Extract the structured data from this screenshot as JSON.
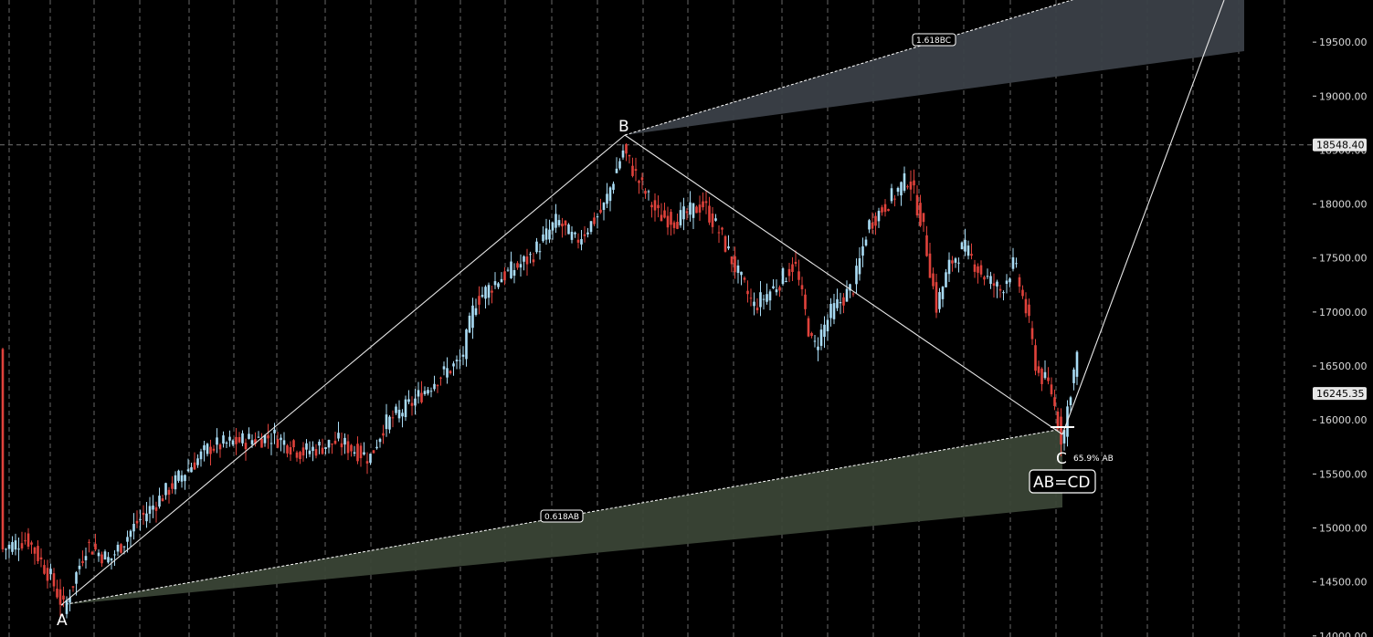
{
  "colors": {
    "background": "#000000",
    "grid": "#8a8a8a",
    "up_candle": "#a9dcf5",
    "down_candle": "#e0423b",
    "pattern_line": "#e8e8e8",
    "upper_zone_fill": "#3b4048",
    "lower_zone_fill": "#3a4436",
    "axis_text": "#d8d8d8",
    "price_tag_bg": "#e6e6e6"
  },
  "chart_data": {
    "type": "candlestick",
    "y_axis": {
      "ticks": [
        "14000.00",
        "14500.00",
        "15000.00",
        "15500.00",
        "16000.00",
        "16500.00",
        "17000.00",
        "17500.00",
        "18000.00",
        "18500.00",
        "19000.00",
        "19500.00"
      ],
      "tick_values": [
        14000,
        14500,
        15000,
        15500,
        16000,
        16500,
        17000,
        17500,
        18000,
        18500,
        19000,
        19500
      ],
      "ylim": [
        13990,
        19890
      ]
    },
    "price_tags": [
      {
        "label": "18548.40",
        "value": 18548.4
      },
      {
        "label": "16245.35",
        "value": 16245.35
      }
    ],
    "pattern": {
      "name": "AB=CD",
      "points": [
        {
          "label": "A",
          "value": 14150
        },
        {
          "label": "B",
          "value": 18600
        },
        {
          "label": "C",
          "value": 15680
        }
      ],
      "fib_labels": {
        "upper": "1.618BC",
        "lower": "0.618AB",
        "retracement": "65.9% AB"
      }
    },
    "candles": []
  }
}
